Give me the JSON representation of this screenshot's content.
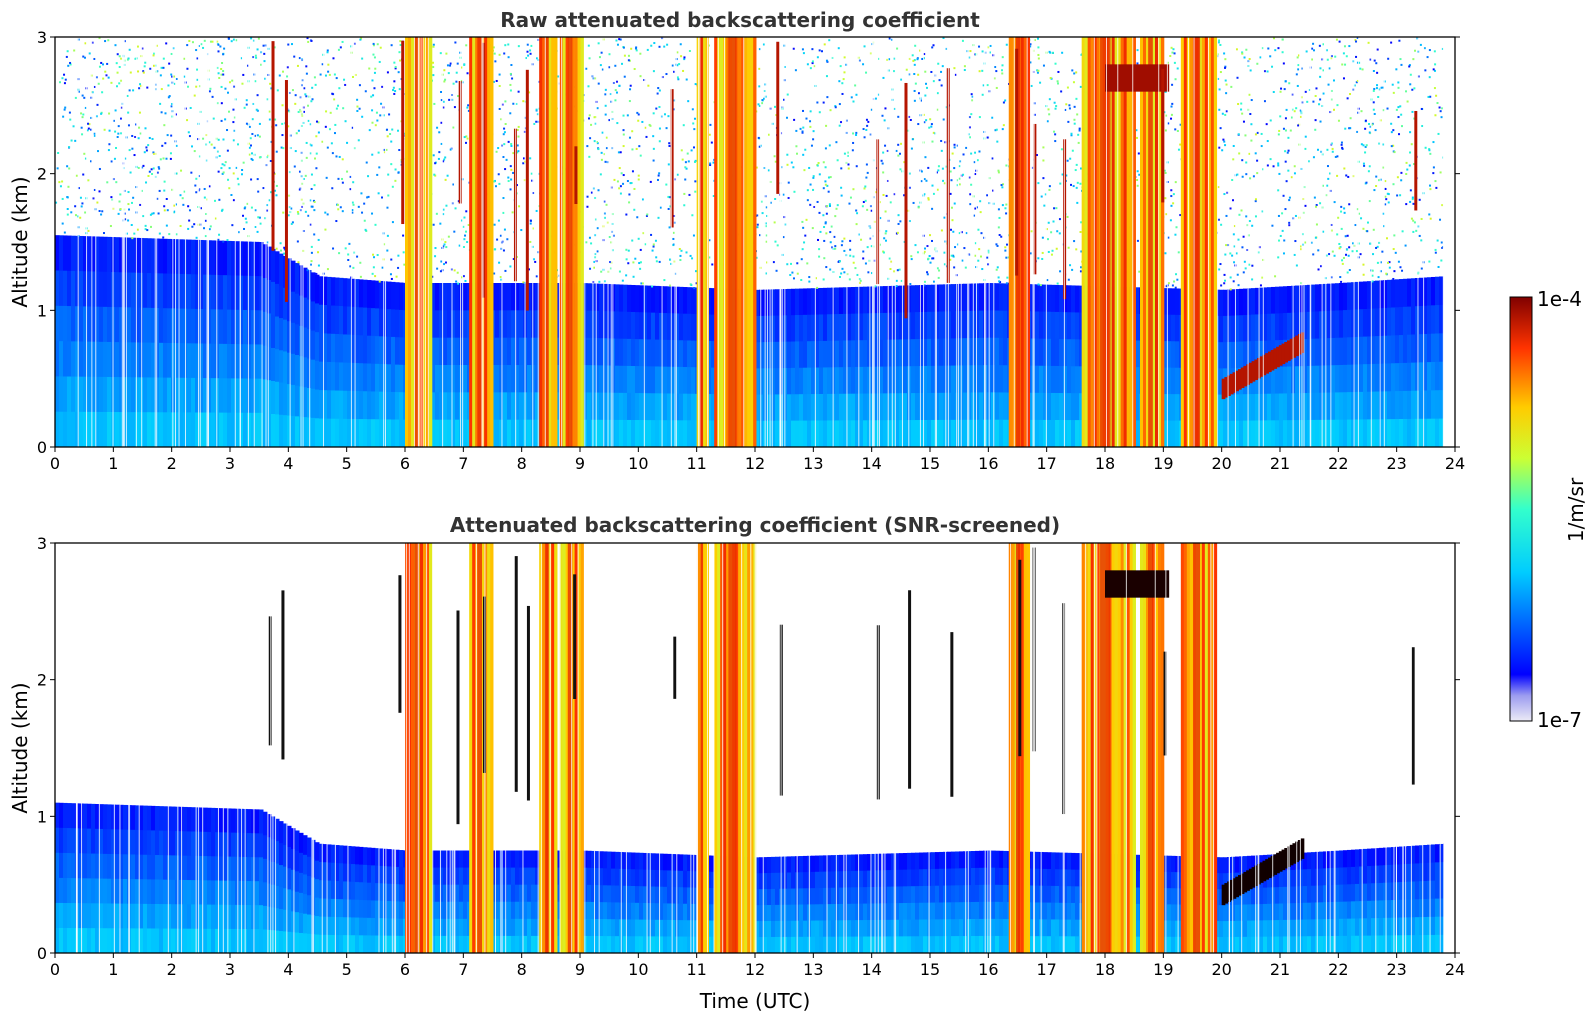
{
  "chart_data": [
    {
      "type": "heatmap",
      "title": "Raw attenuated backscattering coefficient",
      "xlabel": "",
      "ylabel": "Altitude (km)",
      "xlim": [
        0,
        24
      ],
      "ylim": [
        0,
        3
      ],
      "x_ticks": [
        "0",
        "1",
        "2",
        "3",
        "4",
        "5",
        "6",
        "7",
        "8",
        "9",
        "10",
        "11",
        "12",
        "13",
        "14",
        "15",
        "16",
        "17",
        "18",
        "19",
        "20",
        "21",
        "22",
        "23",
        "24"
      ],
      "y_ticks": [
        "0",
        "1",
        "2",
        "3"
      ],
      "screened": false
    },
    {
      "type": "heatmap",
      "title": "Attenuated backscattering coefficient (SNR-screened)",
      "xlabel": "Time (UTC)",
      "ylabel": "Altitude (km)",
      "xlim": [
        0,
        24
      ],
      "ylim": [
        0,
        3
      ],
      "x_ticks": [
        "0",
        "1",
        "2",
        "3",
        "4",
        "5",
        "6",
        "7",
        "8",
        "9",
        "10",
        "11",
        "12",
        "13",
        "14",
        "15",
        "16",
        "17",
        "18",
        "19",
        "20",
        "21",
        "22",
        "23",
        "24"
      ],
      "y_ticks": [
        "0",
        "1",
        "2",
        "3"
      ],
      "screened": true
    }
  ],
  "colorbar": {
    "label": "1/m/sr",
    "min_label": "1e-7",
    "max_label": "1e-4",
    "scale": "log",
    "colormap": "jet",
    "range": [
      1e-07,
      0.0001
    ]
  },
  "features": {
    "cloud_columns_hours": [
      [
        6.0,
        6.45
      ],
      [
        7.1,
        7.5
      ],
      [
        8.3,
        8.6
      ],
      [
        8.65,
        9.05
      ],
      [
        11.0,
        11.2
      ],
      [
        11.3,
        12.0
      ],
      [
        16.35,
        16.7
      ],
      [
        17.6,
        18.5
      ],
      [
        18.6,
        19.0
      ],
      [
        19.3,
        19.9
      ]
    ],
    "precip_streaks_hours": [
      3.7,
      3.9,
      5.9,
      6.9,
      7.3,
      7.9,
      8.1,
      8.9,
      10.6,
      12.4,
      14.1,
      14.6,
      15.3,
      16.5,
      16.8,
      17.3,
      19.0,
      23.3
    ],
    "low_cloud_layer": {
      "start_hour": 20.0,
      "end_hour": 21.4,
      "base_km": 0.35,
      "top_km": 0.85
    },
    "boundary_layer_top_km": [
      [
        0,
        1.1
      ],
      [
        3.5,
        1.05
      ],
      [
        4.5,
        0.8
      ],
      [
        6.0,
        0.75
      ],
      [
        9.0,
        0.75
      ],
      [
        12.0,
        0.7
      ],
      [
        16.0,
        0.75
      ],
      [
        20.0,
        0.7
      ],
      [
        22.0,
        0.75
      ],
      [
        23.8,
        0.8
      ]
    ]
  }
}
